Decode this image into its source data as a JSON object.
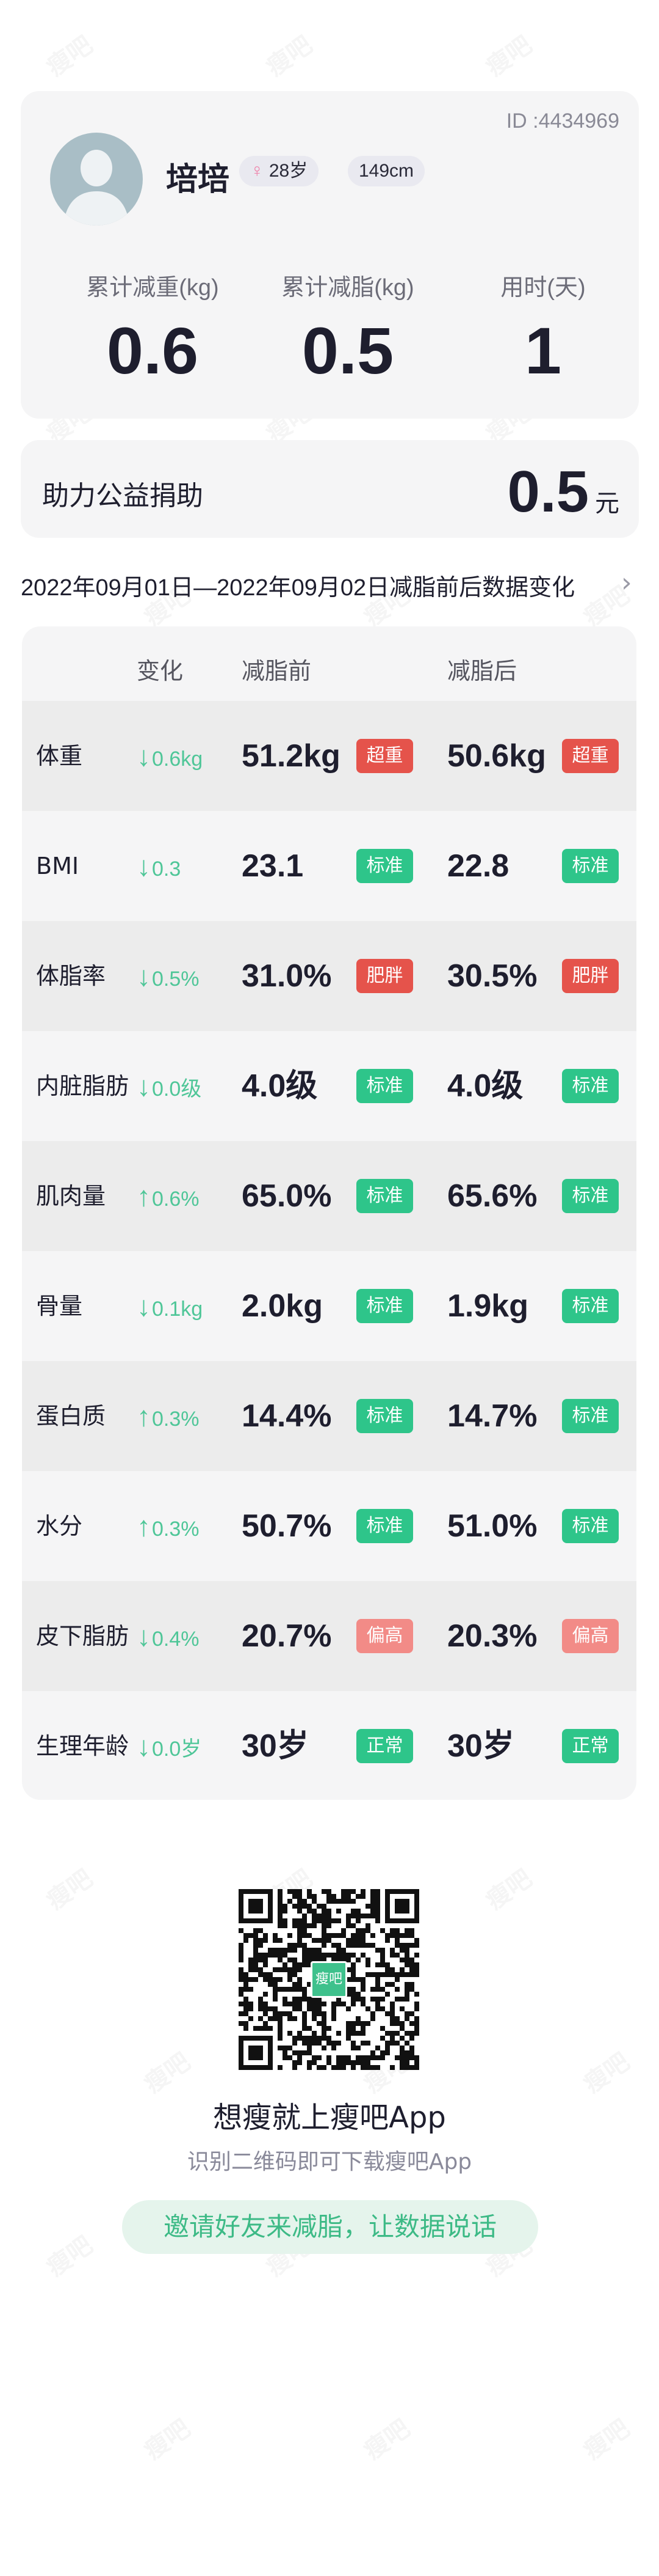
{
  "profile": {
    "id_label": "ID :4434969",
    "name": "培培",
    "gender_icon": "female-icon",
    "age": "28岁",
    "height": "149cm",
    "stats": [
      {
        "label": "累计减重(kg)",
        "value": "0.6"
      },
      {
        "label": "累计减脂(kg)",
        "value": "0.5"
      },
      {
        "label": "用时(天)",
        "value": "1"
      }
    ]
  },
  "donation": {
    "label": "助力公益捐助",
    "value": "0.5",
    "unit": "元"
  },
  "date_range": "2022年09月01日—2022年09月02日减脂前后数据变化",
  "table": {
    "headers": {
      "change": "变化",
      "before": "减脂前",
      "after": "减脂后"
    },
    "rows": [
      {
        "label": "体重",
        "dir": "down",
        "change": "0.6kg",
        "before": "51.2kg",
        "before_tag": "超重",
        "after": "50.6kg",
        "after_tag": "超重",
        "tag_color": "#e5534b"
      },
      {
        "label": "BMI",
        "dir": "down",
        "change": "0.3",
        "before": "23.1",
        "before_tag": "标准",
        "after": "22.8",
        "after_tag": "标准",
        "tag_color": "#2ec58a"
      },
      {
        "label": "体脂率",
        "dir": "down",
        "change": "0.5%",
        "before": "31.0%",
        "before_tag": "肥胖",
        "after": "30.5%",
        "after_tag": "肥胖",
        "tag_color": "#e5534b"
      },
      {
        "label": "内脏脂肪",
        "dir": "down",
        "change": "0.0级",
        "before": "4.0级",
        "before_tag": "标准",
        "after": "4.0级",
        "after_tag": "标准",
        "tag_color": "#2ec58a"
      },
      {
        "label": "肌肉量",
        "dir": "up",
        "change": "0.6%",
        "before": "65.0%",
        "before_tag": "标准",
        "after": "65.6%",
        "after_tag": "标准",
        "tag_color": "#2ec58a"
      },
      {
        "label": "骨量",
        "dir": "down",
        "change": "0.1kg",
        "before": "2.0kg",
        "before_tag": "标准",
        "after": "1.9kg",
        "after_tag": "标准",
        "tag_color": "#2ec58a"
      },
      {
        "label": "蛋白质",
        "dir": "up",
        "change": "0.3%",
        "before": "14.4%",
        "before_tag": "标准",
        "after": "14.7%",
        "after_tag": "标准",
        "tag_color": "#2ec58a"
      },
      {
        "label": "水分",
        "dir": "up",
        "change": "0.3%",
        "before": "50.7%",
        "before_tag": "标准",
        "after": "51.0%",
        "after_tag": "标准",
        "tag_color": "#2ec58a"
      },
      {
        "label": "皮下脂肪",
        "dir": "down",
        "change": "0.4%",
        "before": "20.7%",
        "before_tag": "偏高",
        "after": "20.3%",
        "after_tag": "偏高",
        "tag_color": "#f28b87"
      },
      {
        "label": "生理年龄",
        "dir": "down",
        "change": "0.0岁",
        "before": "30岁",
        "before_tag": "正常",
        "after": "30岁",
        "after_tag": "正常",
        "tag_color": "#2ec58a"
      }
    ]
  },
  "footer": {
    "qr_logo": "瘦吧",
    "title": "想瘦就上瘦吧App",
    "subtitle": "识别二维码即可下载瘦吧App",
    "invite_button": "邀请好友来减脂，让数据说话"
  },
  "watermark": "瘦吧",
  "colors": {
    "accent_green": "#2ec58a",
    "change_green": "#4fc698",
    "alert_red": "#e5534b",
    "warn_pink": "#f28b87"
  }
}
